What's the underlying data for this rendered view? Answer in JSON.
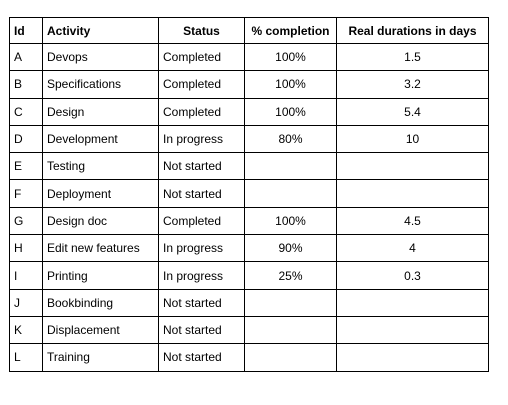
{
  "table": {
    "headers": {
      "id": "Id",
      "activity": "Activity",
      "status": "Status",
      "completion": "% completion",
      "duration": "Real durations in days"
    },
    "rows": [
      {
        "id": "A",
        "activity": "Devops",
        "status": "Completed",
        "completion": "100%",
        "duration": "1.5"
      },
      {
        "id": "B",
        "activity": "Specifications",
        "status": "Completed",
        "completion": "100%",
        "duration": "3.2"
      },
      {
        "id": "C",
        "activity": "Design",
        "status": "Completed",
        "completion": "100%",
        "duration": "5.4"
      },
      {
        "id": "D",
        "activity": "Development",
        "status": "In progress",
        "completion": "80%",
        "duration": "10"
      },
      {
        "id": "E",
        "activity": "Testing",
        "status": "Not started",
        "completion": "",
        "duration": ""
      },
      {
        "id": "F",
        "activity": "Deployment",
        "status": "Not started",
        "completion": "",
        "duration": ""
      },
      {
        "id": "G",
        "activity": "Design doc",
        "status": "Completed",
        "completion": "100%",
        "duration": "4.5"
      },
      {
        "id": "H",
        "activity": "Edit new features",
        "status": "In progress",
        "completion": "90%",
        "duration": "4"
      },
      {
        "id": "I",
        "activity": "Printing",
        "status": "In progress",
        "completion": "25%",
        "duration": "0.3"
      },
      {
        "id": "J",
        "activity": "Bookbinding",
        "status": "Not started",
        "completion": "",
        "duration": ""
      },
      {
        "id": "K",
        "activity": "Displacement",
        "status": "Not started",
        "completion": "",
        "duration": ""
      },
      {
        "id": "L",
        "activity": "Training",
        "status": "Not started",
        "completion": "",
        "duration": ""
      }
    ]
  }
}
